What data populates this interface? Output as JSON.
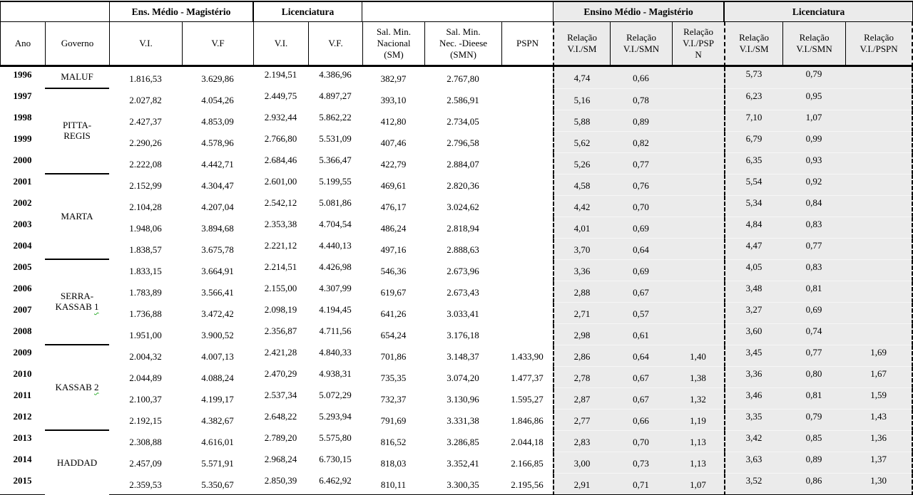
{
  "table": {
    "header": {
      "groups": [
        "Ens. Médio - Magistério",
        "Licenciatura",
        "Ensino Médio - Magistério",
        "Licenciatura"
      ],
      "columns": [
        "Ano",
        "Governo",
        "V.I.",
        "V.F",
        "V.I.",
        "V.F.",
        "Sal. Min.\nNacional\n(SM)",
        "Sal. Min.\nNec. -Dieese\n(SMN)",
        "PSPN",
        "Relação\nV.I./SM",
        "Relação\nV.I./SMN",
        "Relação\nV.I./PSP\nN",
        "Relação\nV.I./SM",
        "Relação\nV.I./SMN",
        "Relação\nV.I./PSPN"
      ]
    },
    "governments": [
      {
        "label_lines": [
          "MALUF"
        ],
        "start_year": "1996",
        "row_span": 1,
        "underline_below": true,
        "squiggle_last_char": false
      },
      {
        "label_lines": [
          "PITTA-",
          "REGIS"
        ],
        "start_year": "1997",
        "row_span": 4,
        "underline_below": true,
        "squiggle_last_char": false
      },
      {
        "label_lines": [
          "MARTA"
        ],
        "start_year": "2001",
        "row_span": 4,
        "underline_below": true,
        "squiggle_last_char": false
      },
      {
        "label_lines": [
          "SERRA-",
          "KASSAB 1"
        ],
        "start_year": "2005",
        "row_span": 4,
        "underline_below": true,
        "squiggle_last_char": true
      },
      {
        "label_lines": [
          "KASSAB 2"
        ],
        "start_year": "2009",
        "row_span": 4,
        "underline_below": true,
        "squiggle_last_char": true
      },
      {
        "label_lines": [
          "HADDAD"
        ],
        "start_year": "2013",
        "row_span": 3,
        "underline_below": false,
        "squiggle_last_char": false
      }
    ],
    "rows": [
      {
        "ano": "1996",
        "values": [
          "1.816,53",
          "3.629,86",
          "2.194,51",
          "4.386,96",
          "382,97",
          "2.767,80",
          "",
          "4,74",
          "0,66",
          "",
          "5,73",
          "0,79",
          ""
        ]
      },
      {
        "ano": "1997",
        "values": [
          "2.027,82",
          "4.054,26",
          "2.449,75",
          "4.897,27",
          "393,10",
          "2.586,91",
          "",
          "5,16",
          "0,78",
          "",
          "6,23",
          "0,95",
          ""
        ]
      },
      {
        "ano": "1998",
        "values": [
          "2.427,37",
          "4.853,09",
          "2.932,44",
          "5.862,22",
          "412,80",
          "2.734,05",
          "",
          "5,88",
          "0,89",
          "",
          "7,10",
          "1,07",
          ""
        ]
      },
      {
        "ano": "1999",
        "values": [
          "2.290,26",
          "4.578,96",
          "2.766,80",
          "5.531,09",
          "407,46",
          "2.796,58",
          "",
          "5,62",
          "0,82",
          "",
          "6,79",
          "0,99",
          ""
        ]
      },
      {
        "ano": "2000",
        "values": [
          "2.222,08",
          "4.442,71",
          "2.684,46",
          "5.366,47",
          "422,79",
          "2.884,07",
          "",
          "5,26",
          "0,77",
          "",
          "6,35",
          "0,93",
          ""
        ]
      },
      {
        "ano": "2001",
        "values": [
          "2.152,99",
          "4.304,47",
          "2.601,00",
          "5.199,55",
          "469,61",
          "2.820,36",
          "",
          "4,58",
          "0,76",
          "",
          "5,54",
          "0,92",
          ""
        ]
      },
      {
        "ano": "2002",
        "values": [
          "2.104,28",
          "4.207,04",
          "2.542,12",
          "5.081,86",
          "476,17",
          "3.024,62",
          "",
          "4,42",
          "0,70",
          "",
          "5,34",
          "0,84",
          ""
        ]
      },
      {
        "ano": "2003",
        "values": [
          "1.948,06",
          "3.894,68",
          "2.353,38",
          "4.704,54",
          "486,24",
          "2.818,94",
          "",
          "4,01",
          "0,69",
          "",
          "4,84",
          "0,83",
          ""
        ]
      },
      {
        "ano": "2004",
        "values": [
          "1.838,57",
          "3.675,78",
          "2.221,12",
          "4.440,13",
          "497,16",
          "2.888,63",
          "",
          "3,70",
          "0,64",
          "",
          "4,47",
          "0,77",
          ""
        ]
      },
      {
        "ano": "2005",
        "values": [
          "1.833,15",
          "3.664,91",
          "2.214,51",
          "4.426,98",
          "546,36",
          "2.673,96",
          "",
          "3,36",
          "0,69",
          "",
          "4,05",
          "0,83",
          ""
        ]
      },
      {
        "ano": "2006",
        "values": [
          "1.783,89",
          "3.566,41",
          "2.155,00",
          "4.307,99",
          "619,67",
          "2.673,43",
          "",
          "2,88",
          "0,67",
          "",
          "3,48",
          "0,81",
          ""
        ]
      },
      {
        "ano": "2007",
        "values": [
          "1.736,88",
          "3.472,42",
          "2.098,19",
          "4.194,45",
          "641,26",
          "3.033,41",
          "",
          "2,71",
          "0,57",
          "",
          "3,27",
          "0,69",
          ""
        ]
      },
      {
        "ano": "2008",
        "values": [
          "1.951,00",
          "3.900,52",
          "2.356,87",
          "4.711,56",
          "654,24",
          "3.176,18",
          "",
          "2,98",
          "0,61",
          "",
          "3,60",
          "0,74",
          ""
        ]
      },
      {
        "ano": "2009",
        "values": [
          "2.004,32",
          "4.007,13",
          "2.421,28",
          "4.840,33",
          "701,86",
          "3.148,37",
          "1.433,90",
          "2,86",
          "0,64",
          "1,40",
          "3,45",
          "0,77",
          "1,69"
        ]
      },
      {
        "ano": "2010",
        "values": [
          "2.044,89",
          "4.088,24",
          "2.470,29",
          "4.938,31",
          "735,35",
          "3.074,20",
          "1.477,37",
          "2,78",
          "0,67",
          "1,38",
          "3,36",
          "0,80",
          "1,67"
        ]
      },
      {
        "ano": "2011",
        "values": [
          "2.100,37",
          "4.199,17",
          "2.537,34",
          "5.072,29",
          "732,37",
          "3.130,96",
          "1.595,27",
          "2,87",
          "0,67",
          "1,32",
          "3,46",
          "0,81",
          "1,59"
        ]
      },
      {
        "ano": "2012",
        "values": [
          "2.192,15",
          "4.382,67",
          "2.648,22",
          "5.293,94",
          "791,69",
          "3.331,38",
          "1.846,86",
          "2,77",
          "0,66",
          "1,19",
          "3,35",
          "0,79",
          "1,43"
        ]
      },
      {
        "ano": "2013",
        "values": [
          "2.308,88",
          "4.616,01",
          "2.789,20",
          "5.575,80",
          "816,52",
          "3.286,85",
          "2.044,18",
          "2,83",
          "0,70",
          "1,13",
          "3,42",
          "0,85",
          "1,36"
        ]
      },
      {
        "ano": "2014",
        "values": [
          "2.457,09",
          "5.571,91",
          "2.968,24",
          "6.730,15",
          "818,03",
          "3.352,41",
          "2.166,85",
          "3,00",
          "0,73",
          "1,13",
          "3,63",
          "0,89",
          "1,37"
        ]
      },
      {
        "ano": "2015",
        "values": [
          "2.359,53",
          "5.350,67",
          "2.850,39",
          "6.462,92",
          "810,11",
          "3.300,35",
          "2.195,56",
          "2,91",
          "0,71",
          "1,07",
          "3,52",
          "0,86",
          "1,30"
        ]
      }
    ]
  },
  "colors": {
    "right_section_bg": "#ebebeb",
    "border": "#000000",
    "spellcheck_squiggle": "#2eae2e"
  }
}
